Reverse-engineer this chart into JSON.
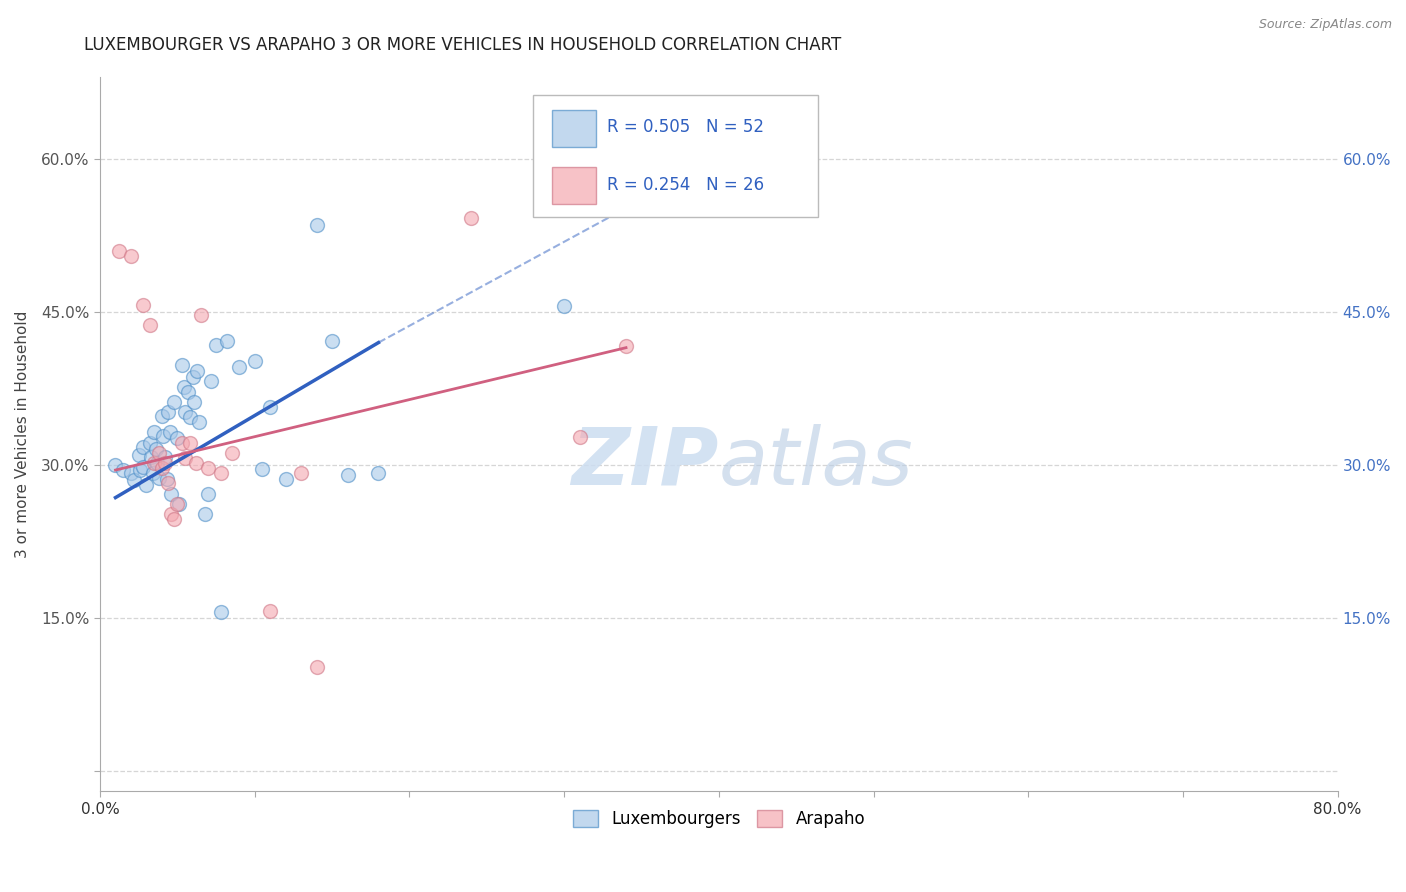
{
  "title": "LUXEMBOURGER VS ARAPAHO 3 OR MORE VEHICLES IN HOUSEHOLD CORRELATION CHART",
  "source": "Source: ZipAtlas.com",
  "ylabel": "3 or more Vehicles in Household",
  "xlim": [
    0.0,
    0.8
  ],
  "ylim": [
    -0.02,
    0.68
  ],
  "xtick_positions": [
    0.0,
    0.1,
    0.2,
    0.3,
    0.4,
    0.5,
    0.6,
    0.7,
    0.8
  ],
  "xtick_labels": [
    "0.0%",
    "",
    "",
    "",
    "",
    "",
    "",
    "",
    "80.0%"
  ],
  "ytick_positions": [
    0.0,
    0.15,
    0.3,
    0.45,
    0.6
  ],
  "ytick_labels_left": [
    "",
    "15.0%",
    "30.0%",
    "45.0%",
    "60.0%"
  ],
  "ytick_labels_right": [
    "",
    "15.0%",
    "30.0%",
    "45.0%",
    "60.0%"
  ],
  "legend_labels": [
    "Luxembourgers",
    "Arapaho"
  ],
  "legend_r_blue": "R = 0.505",
  "legend_n_blue": "N = 52",
  "legend_r_pink": "R = 0.254",
  "legend_n_pink": "N = 26",
  "blue_color": "#a8c8e8",
  "pink_color": "#f4a8b0",
  "blue_line_color": "#3060c0",
  "pink_line_color": "#d06080",
  "watermark_color": "#ccddf0",
  "blue_points": [
    [
      0.01,
      0.3
    ],
    [
      0.015,
      0.295
    ],
    [
      0.02,
      0.292
    ],
    [
      0.022,
      0.285
    ],
    [
      0.025,
      0.31
    ],
    [
      0.026,
      0.295
    ],
    [
      0.028,
      0.318
    ],
    [
      0.028,
      0.298
    ],
    [
      0.03,
      0.28
    ],
    [
      0.032,
      0.322
    ],
    [
      0.033,
      0.308
    ],
    [
      0.034,
      0.292
    ],
    [
      0.035,
      0.332
    ],
    [
      0.036,
      0.316
    ],
    [
      0.037,
      0.302
    ],
    [
      0.038,
      0.287
    ],
    [
      0.04,
      0.348
    ],
    [
      0.041,
      0.328
    ],
    [
      0.042,
      0.308
    ],
    [
      0.043,
      0.286
    ],
    [
      0.044,
      0.352
    ],
    [
      0.045,
      0.332
    ],
    [
      0.046,
      0.272
    ],
    [
      0.048,
      0.362
    ],
    [
      0.05,
      0.326
    ],
    [
      0.051,
      0.262
    ],
    [
      0.053,
      0.398
    ],
    [
      0.054,
      0.376
    ],
    [
      0.055,
      0.352
    ],
    [
      0.057,
      0.372
    ],
    [
      0.058,
      0.347
    ],
    [
      0.06,
      0.386
    ],
    [
      0.061,
      0.362
    ],
    [
      0.063,
      0.392
    ],
    [
      0.064,
      0.342
    ],
    [
      0.068,
      0.252
    ],
    [
      0.07,
      0.272
    ],
    [
      0.072,
      0.382
    ],
    [
      0.075,
      0.418
    ],
    [
      0.078,
      0.156
    ],
    [
      0.082,
      0.422
    ],
    [
      0.09,
      0.396
    ],
    [
      0.1,
      0.402
    ],
    [
      0.105,
      0.296
    ],
    [
      0.11,
      0.357
    ],
    [
      0.12,
      0.286
    ],
    [
      0.14,
      0.535
    ],
    [
      0.15,
      0.422
    ],
    [
      0.16,
      0.29
    ],
    [
      0.18,
      0.292
    ],
    [
      0.3,
      0.456
    ],
    [
      0.32,
      0.58
    ]
  ],
  "pink_points": [
    [
      0.012,
      0.51
    ],
    [
      0.02,
      0.505
    ],
    [
      0.028,
      0.457
    ],
    [
      0.032,
      0.437
    ],
    [
      0.035,
      0.302
    ],
    [
      0.038,
      0.312
    ],
    [
      0.04,
      0.297
    ],
    [
      0.042,
      0.302
    ],
    [
      0.044,
      0.282
    ],
    [
      0.046,
      0.252
    ],
    [
      0.048,
      0.247
    ],
    [
      0.05,
      0.262
    ],
    [
      0.053,
      0.322
    ],
    [
      0.055,
      0.307
    ],
    [
      0.058,
      0.322
    ],
    [
      0.062,
      0.302
    ],
    [
      0.065,
      0.447
    ],
    [
      0.07,
      0.297
    ],
    [
      0.078,
      0.292
    ],
    [
      0.085,
      0.312
    ],
    [
      0.11,
      0.157
    ],
    [
      0.13,
      0.292
    ],
    [
      0.14,
      0.102
    ],
    [
      0.24,
      0.542
    ],
    [
      0.31,
      0.327
    ],
    [
      0.34,
      0.417
    ]
  ],
  "blue_trendline_solid": [
    [
      0.01,
      0.268
    ],
    [
      0.18,
      0.42
    ]
  ],
  "blue_trendline_dash": [
    [
      0.18,
      0.42
    ],
    [
      0.35,
      0.56
    ]
  ],
  "pink_trendline": [
    [
      0.01,
      0.295
    ],
    [
      0.34,
      0.415
    ]
  ],
  "background_color": "#ffffff",
  "grid_color": "#cccccc",
  "marker_size": 100
}
